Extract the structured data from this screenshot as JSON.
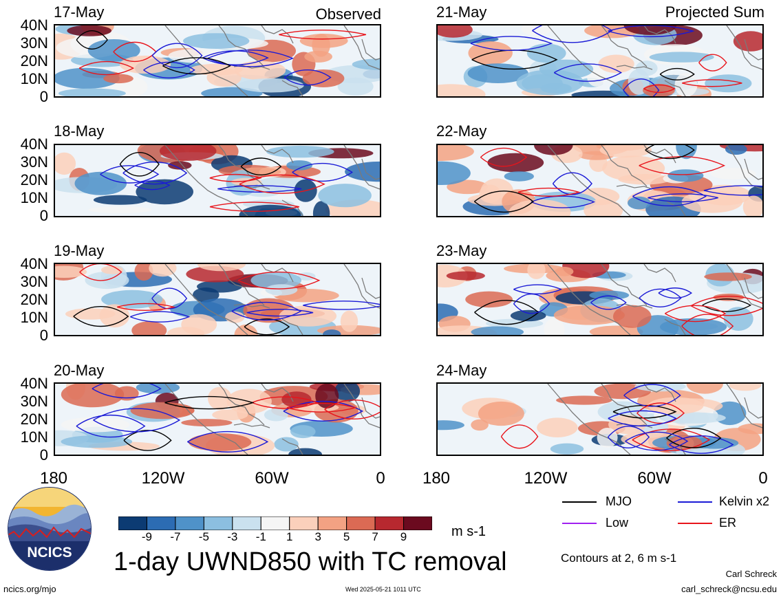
{
  "column_titles": {
    "left": "Observed",
    "right": "Projected Sum"
  },
  "panels_left": [
    {
      "date": "17-May"
    },
    {
      "date": "18-May"
    },
    {
      "date": "19-May"
    },
    {
      "date": "20-May"
    }
  ],
  "panels_right": [
    {
      "date": "21-May"
    },
    {
      "date": "22-May"
    },
    {
      "date": "23-May"
    },
    {
      "date": "24-May"
    }
  ],
  "lat_labels": [
    "40N",
    "30N",
    "20N",
    "10N",
    "0"
  ],
  "lon_labels": [
    "180",
    "120W",
    "60W",
    "0"
  ],
  "line_legend": {
    "mjo": {
      "label": "MJO",
      "color": "#000000"
    },
    "kelvin": {
      "label": "Kelvin x2",
      "color": "#1a1ad6"
    },
    "low": {
      "label": "Low",
      "color": "#a020f0"
    },
    "er": {
      "label": "ER",
      "color": "#e8141b"
    }
  },
  "colorbar": {
    "ticks": [
      "-9",
      "-7",
      "-5",
      "-3",
      "-1",
      "1",
      "3",
      "5",
      "7",
      "9"
    ],
    "colors": [
      "#0c3b73",
      "#2c6cb3",
      "#4f92c9",
      "#8cbfe0",
      "#cae1ef",
      "#f5f5f5",
      "#fbd0bb",
      "#f3a283",
      "#db6a54",
      "#b7282f",
      "#6b0a1f"
    ],
    "units": "m s-1"
  },
  "main_title": "1-day UWND850 with TC removal",
  "contours_note": "Contours at 2, 6 m s-1",
  "logo_text": "NCICS",
  "url": "ncics.org/mjo",
  "timestamp": "Wed 2025-05-21 1011 UTC",
  "author": "Carl Schreck",
  "email": "carl_schreck@ncsu.edu"
}
